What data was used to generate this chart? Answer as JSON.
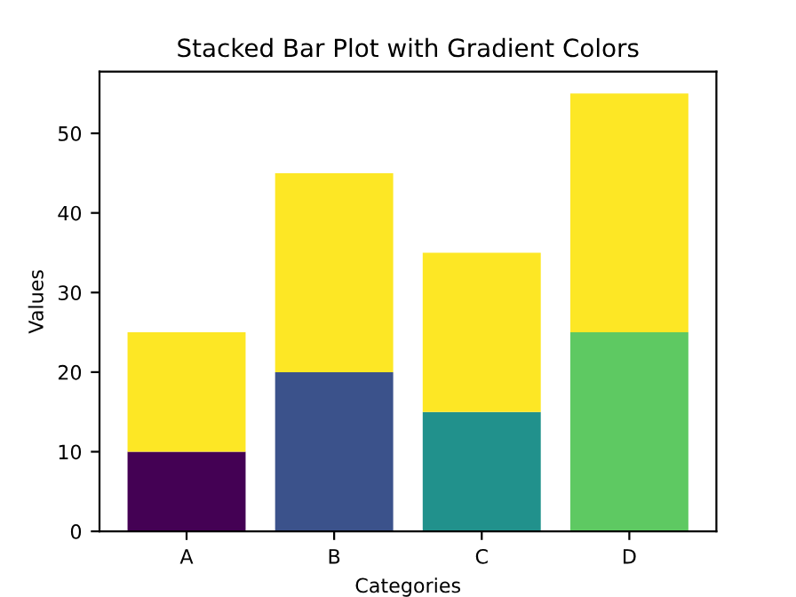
{
  "chart_data": {
    "type": "bar",
    "title": "Stacked Bar Plot with Gradient Colors",
    "xlabel": "Categories",
    "ylabel": "Values",
    "categories": [
      "A",
      "B",
      "C",
      "D"
    ],
    "stacked": true,
    "series": [
      {
        "colors": [
          "#440154",
          "#3b528b",
          "#21918c",
          "#5ec962"
        ],
        "values": [
          10,
          20,
          15,
          25
        ]
      },
      {
        "color": "#fde725",
        "values": [
          15,
          25,
          20,
          30
        ]
      }
    ],
    "ylim": [
      0,
      57.75
    ],
    "yticks": [
      0,
      10,
      20,
      30,
      40,
      50
    ]
  }
}
